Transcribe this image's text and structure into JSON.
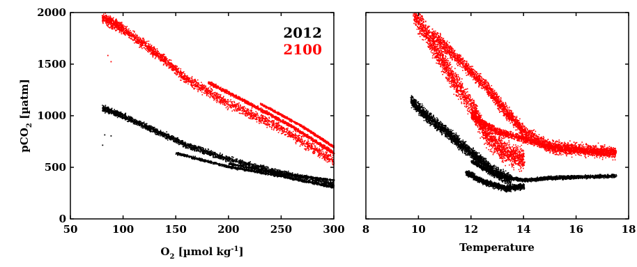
{
  "colors": {
    "series_2012": "#000000",
    "series_2100": "#ff0000"
  },
  "chart_data": [
    {
      "type": "scatter",
      "title": "",
      "xlabel_parts": [
        "O",
        "2",
        " [µmol kg",
        "-1",
        "]"
      ],
      "ylabel_parts": [
        "pCO",
        "2",
        " [µatm]"
      ],
      "xlim": [
        50,
        300
      ],
      "ylim": [
        0,
        2000
      ],
      "xticks": [
        50,
        100,
        150,
        200,
        250,
        300
      ],
      "yticks": [
        0,
        500,
        1000,
        1500,
        2000
      ],
      "grid": false,
      "legend": {
        "placement": "top-right",
        "entries": [
          "2012",
          "2100"
        ]
      },
      "series": [
        {
          "name": "2012",
          "bands": [
            {
              "points": [
                [
                  80,
                  1080
                ],
                [
                  100,
                  1000
                ],
                [
                  130,
                  860
                ],
                [
                  160,
                  720
                ],
                [
                  200,
                  580
                ],
                [
                  250,
                  450
                ],
                [
                  300,
                  340
                ]
              ],
              "spread": 40
            },
            {
              "points": [
                [
                  150,
                  640
                ],
                [
                  200,
                  510
                ],
                [
                  250,
                  420
                ],
                [
                  300,
                  310
                ]
              ],
              "spread": 18
            },
            {
              "points": [
                [
                  200,
                  540
                ],
                [
                  250,
                  440
                ],
                [
                  300,
                  380
                ]
              ],
              "spread": 12
            }
          ],
          "outliers": [
            [
              82,
              820
            ],
            [
              88,
              810
            ],
            [
              80,
              720
            ]
          ]
        },
        {
          "name": "2100",
          "bands": [
            {
              "points": [
                [
                  80,
                  1960
                ],
                [
                  100,
                  1840
                ],
                [
                  130,
                  1620
                ],
                [
                  160,
                  1360
                ],
                [
                  200,
                  1120
                ],
                [
                  250,
                  880
                ],
                [
                  300,
                  560
                ]
              ],
              "spread": 70
            },
            {
              "points": [
                [
                  180,
                  1330
                ],
                [
                  220,
                  1120
                ],
                [
                  260,
                  900
                ],
                [
                  300,
                  640
                ]
              ],
              "spread": 25
            },
            {
              "points": [
                [
                  230,
                  1120
                ],
                [
                  270,
                  900
                ],
                [
                  300,
                  700
                ]
              ],
              "spread": 15
            }
          ],
          "outliers": [
            [
              88,
              1530
            ],
            [
              85,
              1590
            ]
          ]
        }
      ]
    },
    {
      "type": "scatter",
      "title": "",
      "xlabel": "Temperature",
      "ylabel": "",
      "xlim": [
        8,
        18
      ],
      "ylim": [
        0,
        2000
      ],
      "xticks": [
        8,
        10,
        12,
        14,
        16,
        18
      ],
      "yticks": [
        0,
        500,
        1000,
        1500,
        2000
      ],
      "show_ytick_labels": false,
      "grid": false,
      "series": [
        {
          "name": "2012",
          "bands": [
            {
              "points": [
                [
                  9.7,
                  1150
                ],
                [
                  10.3,
                  1000
                ],
                [
                  11,
                  860
                ],
                [
                  11.6,
                  720
                ],
                [
                  12.2,
                  600
                ],
                [
                  12.8,
                  470
                ],
                [
                  13.5,
                  380
                ]
              ],
              "spread": 80
            },
            {
              "points": [
                [
                  12,
                  560
                ],
                [
                  13,
                  420
                ],
                [
                  14,
                  380
                ],
                [
                  15,
                  400
                ],
                [
                  16,
                  410
                ],
                [
                  17.5,
                  420
                ]
              ],
              "spread": 25
            },
            {
              "points": [
                [
                  11.8,
                  450
                ],
                [
                  12.5,
                  360
                ],
                [
                  13.3,
                  300
                ],
                [
                  14,
                  320
                ]
              ],
              "spread": 40
            }
          ],
          "outliers": []
        },
        {
          "name": "2100",
          "bands": [
            {
              "points": [
                [
                  9.8,
                  2000
                ],
                [
                  10.5,
                  1700
                ],
                [
                  11.2,
                  1400
                ],
                [
                  12,
                  1100
                ],
                [
                  12.6,
                  800
                ],
                [
                  13.3,
                  650
                ],
                [
                  14,
                  580
                ]
              ],
              "spread": 150
            },
            {
              "points": [
                [
                  10.5,
                  1800
                ],
                [
                  11.5,
                  1550
                ],
                [
                  12.5,
                  1300
                ],
                [
                  13.3,
                  1050
                ],
                [
                  14,
                  850
                ],
                [
                  15,
                  700
                ],
                [
                  16,
                  680
                ],
                [
                  17.5,
                  640
                ]
              ],
              "spread": 90
            },
            {
              "points": [
                [
                  12,
                  1000
                ],
                [
                  13,
                  850
                ],
                [
                  14,
                  780
                ],
                [
                  15,
                  700
                ],
                [
                  16.5,
                  660
                ],
                [
                  17.5,
                  650
                ]
              ],
              "spread": 50
            }
          ],
          "outliers": []
        }
      ]
    }
  ]
}
